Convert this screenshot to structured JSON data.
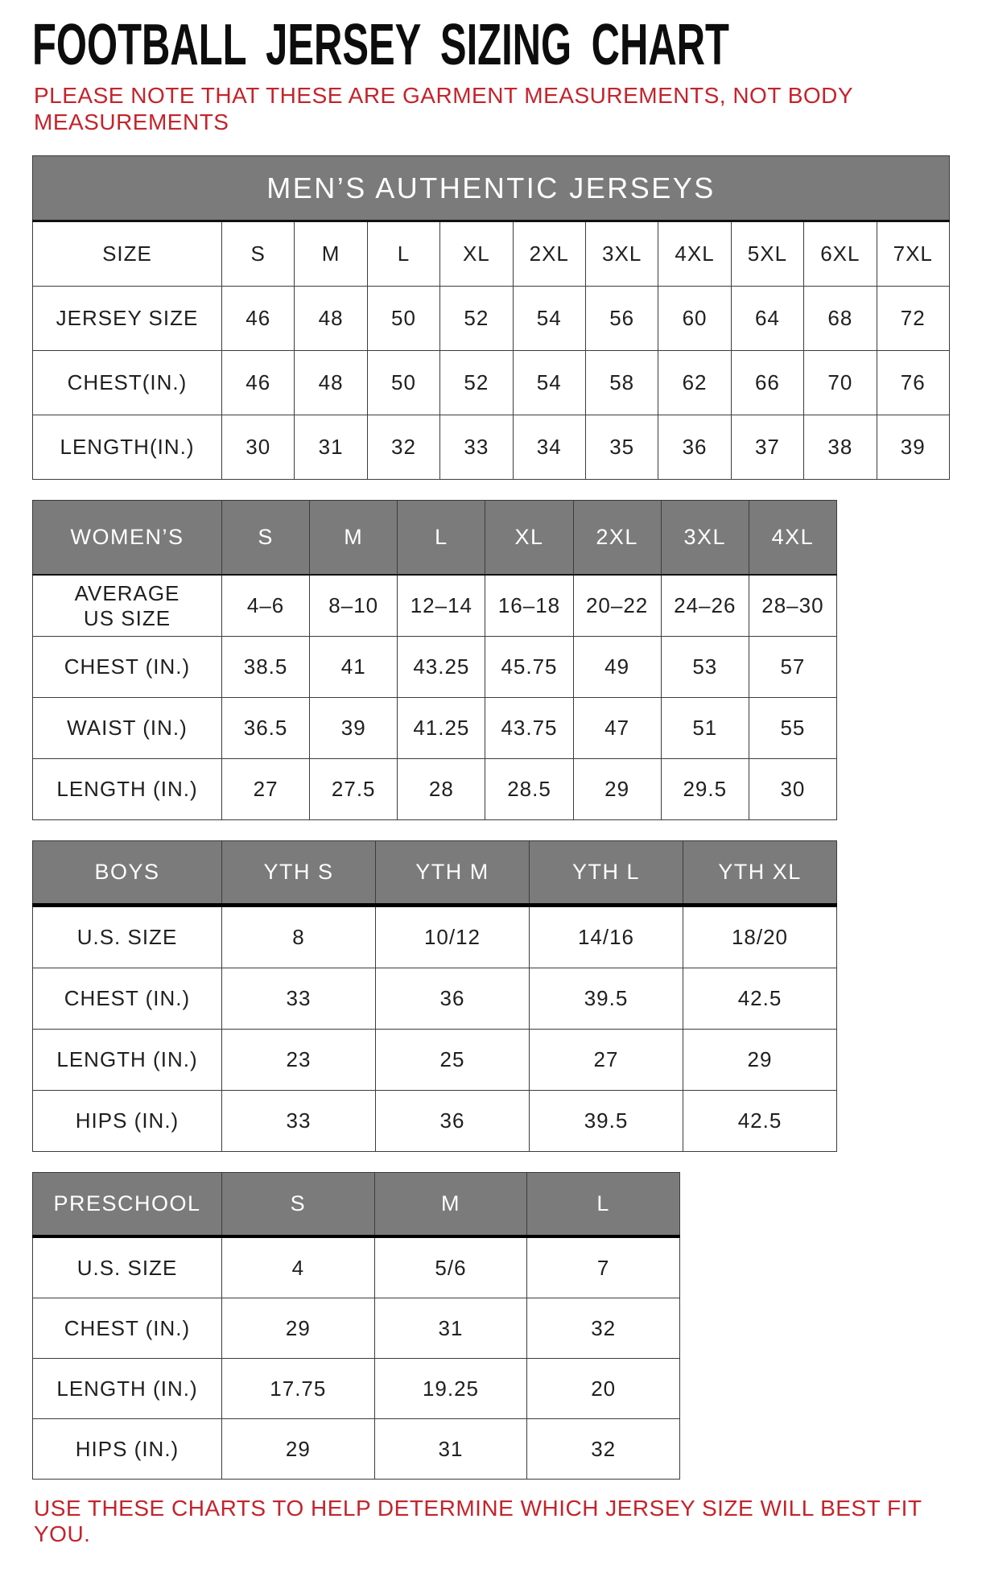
{
  "title": "FOOTBALL JERSEY SIZING CHART",
  "note_line1": "PLEASE NOTE THAT THESE ARE GARMENT MEASUREMENTS, NOT BODY",
  "note_line2": "MEASUREMENTS",
  "footer": "USE THESE CHARTS TO HELP DETERMINE WHICH JERSEY SIZE WILL BEST FIT YOU.",
  "colors": {
    "accent_red": "#c5232b",
    "header_gray": "#7b7b7b",
    "header_text": "#ffffff",
    "border_dark": "#3c3c3c",
    "body_text": "#202020"
  },
  "tables": [
    {
      "id": "mens",
      "banner": "MEN’S AUTHENTIC JERSEYS",
      "rows": [
        {
          "label": "SIZE",
          "values": [
            "S",
            "M",
            "L",
            "XL",
            "2XL",
            "3XL",
            "4XL",
            "5XL",
            "6XL",
            "7XL"
          ]
        },
        {
          "label": "JERSEY SIZE",
          "values": [
            "46",
            "48",
            "50",
            "52",
            "54",
            "56",
            "60",
            "64",
            "68",
            "72"
          ]
        },
        {
          "label": "CHEST(IN.)",
          "values": [
            "46",
            "48",
            "50",
            "52",
            "54",
            "58",
            "62",
            "66",
            "70",
            "76"
          ]
        },
        {
          "label": "LENGTH(IN.)",
          "values": [
            "30",
            "31",
            "32",
            "33",
            "34",
            "35",
            "36",
            "37",
            "38",
            "39"
          ]
        }
      ]
    },
    {
      "id": "womens",
      "header": {
        "label": "WOMEN’S",
        "columns": [
          "S",
          "M",
          "L",
          "XL",
          "2XL",
          "3XL",
          "4XL"
        ]
      },
      "rows": [
        {
          "label": "AVERAGE\nUS SIZE",
          "values": [
            "4–6",
            "8–10",
            "12–14",
            "16–18",
            "20–22",
            "24–26",
            "28–30"
          ]
        },
        {
          "label": "CHEST (IN.)",
          "values": [
            "38.5",
            "41",
            "43.25",
            "45.75",
            "49",
            "53",
            "57"
          ]
        },
        {
          "label": "WAIST (IN.)",
          "values": [
            "36.5",
            "39",
            "41.25",
            "43.75",
            "47",
            "51",
            "55"
          ]
        },
        {
          "label": "LENGTH (IN.)",
          "values": [
            "27",
            "27.5",
            "28",
            "28.5",
            "29",
            "29.5",
            "30"
          ]
        }
      ]
    },
    {
      "id": "boys",
      "header": {
        "label": "BOYS",
        "columns": [
          "YTH S",
          "YTH M",
          "YTH L",
          "YTH XL"
        ]
      },
      "rows": [
        {
          "label": "U.S. SIZE",
          "values": [
            "8",
            "10/12",
            "14/16",
            "18/20"
          ]
        },
        {
          "label": "CHEST (IN.)",
          "values": [
            "33",
            "36",
            "39.5",
            "42.5"
          ]
        },
        {
          "label": "LENGTH (IN.)",
          "values": [
            "23",
            "25",
            "27",
            "29"
          ]
        },
        {
          "label": "HIPS (IN.)",
          "values": [
            "33",
            "36",
            "39.5",
            "42.5"
          ]
        }
      ]
    },
    {
      "id": "preschool",
      "header": {
        "label": "PRESCHOOL",
        "columns": [
          "S",
          "M",
          "L"
        ]
      },
      "rows": [
        {
          "label": "U.S. SIZE",
          "values": [
            "4",
            "5/6",
            "7"
          ]
        },
        {
          "label": "CHEST (IN.)",
          "values": [
            "29",
            "31",
            "32"
          ]
        },
        {
          "label": "LENGTH (IN.)",
          "values": [
            "17.75",
            "19.25",
            "20"
          ]
        },
        {
          "label": "HIPS (IN.)",
          "values": [
            "29",
            "31",
            "32"
          ]
        }
      ]
    }
  ]
}
